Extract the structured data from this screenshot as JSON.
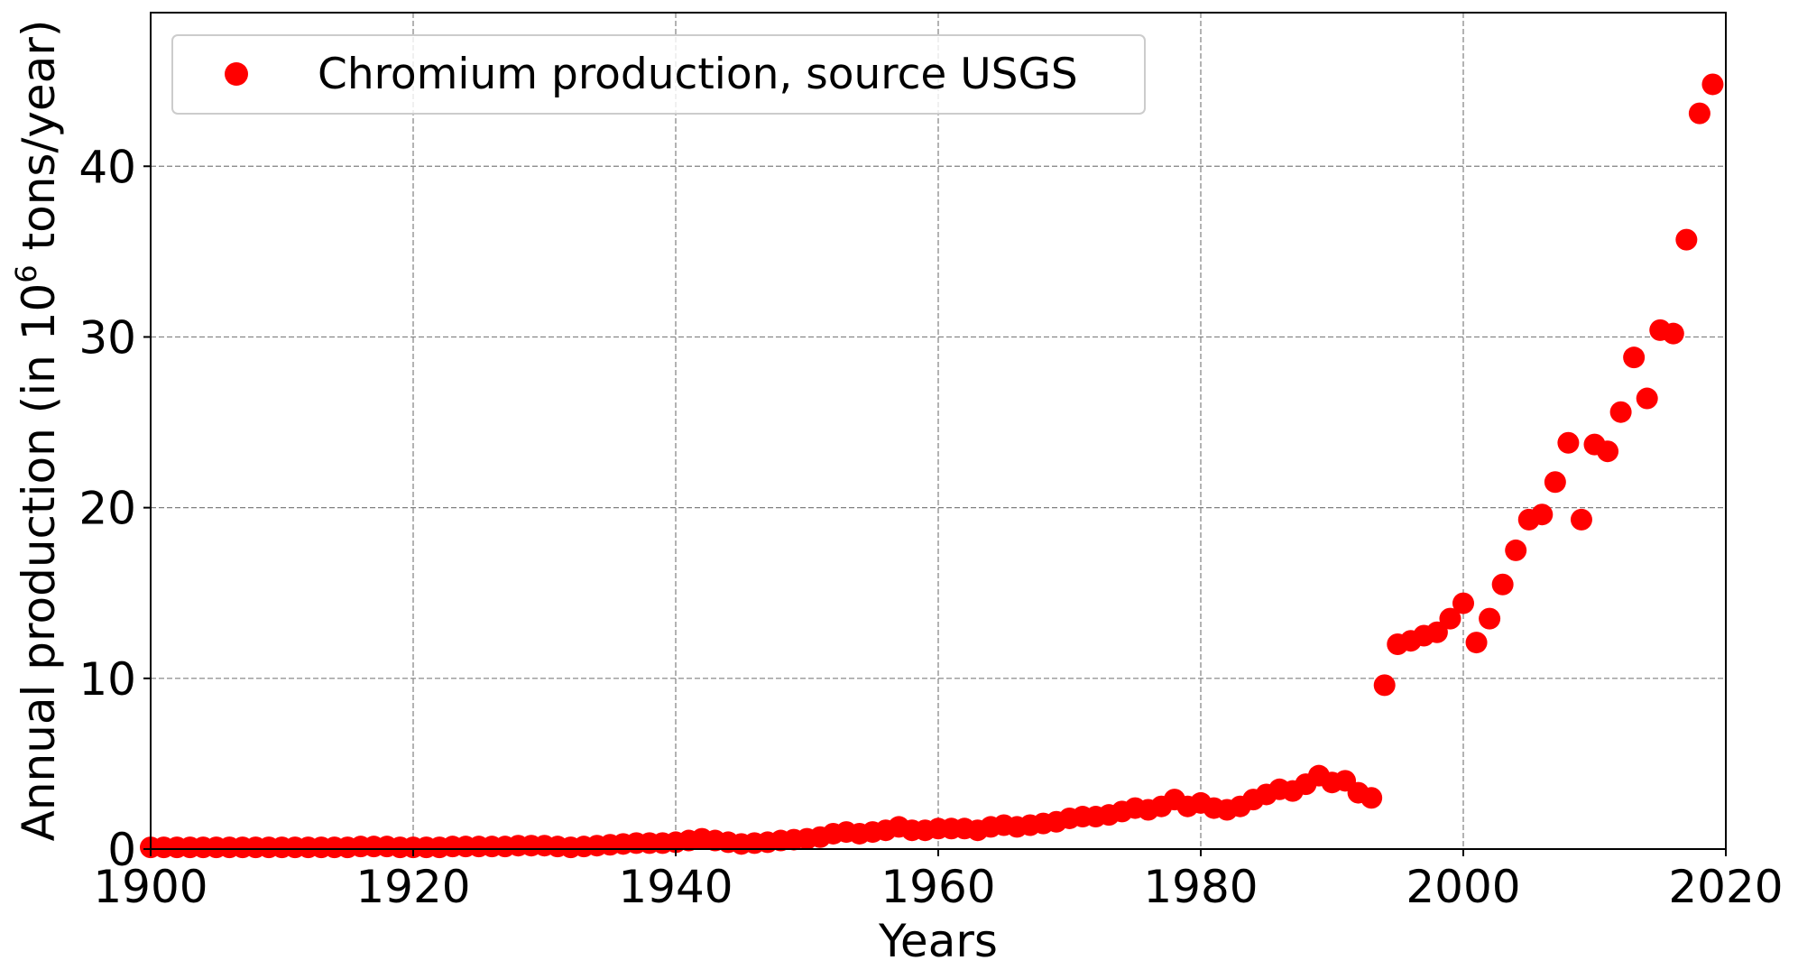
{
  "chart_data": {
    "type": "scatter",
    "xlabel": "Years",
    "ylabel_prefix": "Annual production (in 10",
    "ylabel_sup": "6",
    "ylabel_suffix": " tons/year)",
    "xlim": [
      1900,
      2020
    ],
    "ylim": [
      0,
      49
    ],
    "x_ticks": [
      1900,
      1920,
      1940,
      1960,
      1980,
      2000,
      2020
    ],
    "y_ticks": [
      0,
      10,
      20,
      30,
      40
    ],
    "grid": true,
    "legend_position": "upper-left",
    "series": [
      {
        "name": "Chromium production, source USGS",
        "color": "#ff0000",
        "marker": "circle",
        "x": [
          1900,
          1901,
          1902,
          1903,
          1904,
          1905,
          1906,
          1907,
          1908,
          1909,
          1910,
          1911,
          1912,
          1913,
          1914,
          1915,
          1916,
          1917,
          1918,
          1919,
          1920,
          1921,
          1922,
          1923,
          1924,
          1925,
          1926,
          1927,
          1928,
          1929,
          1930,
          1931,
          1932,
          1933,
          1934,
          1935,
          1936,
          1937,
          1938,
          1939,
          1940,
          1941,
          1942,
          1943,
          1944,
          1945,
          1946,
          1947,
          1948,
          1949,
          1950,
          1951,
          1952,
          1953,
          1954,
          1955,
          1956,
          1957,
          1958,
          1959,
          1960,
          1961,
          1962,
          1963,
          1964,
          1965,
          1966,
          1967,
          1968,
          1969,
          1970,
          1971,
          1972,
          1973,
          1974,
          1975,
          1976,
          1977,
          1978,
          1979,
          1980,
          1981,
          1982,
          1983,
          1984,
          1985,
          1986,
          1987,
          1988,
          1989,
          1990,
          1991,
          1992,
          1993,
          1994,
          1995,
          1996,
          1997,
          1998,
          1999,
          2000,
          2001,
          2002,
          2003,
          2004,
          2005,
          2006,
          2007,
          2008,
          2009,
          2010,
          2011,
          2012,
          2013,
          2014,
          2015,
          2016,
          2017,
          2018,
          2019
        ],
        "y": [
          0.1,
          0.1,
          0.1,
          0.1,
          0.1,
          0.1,
          0.1,
          0.1,
          0.1,
          0.1,
          0.1,
          0.1,
          0.1,
          0.1,
          0.1,
          0.1,
          0.15,
          0.15,
          0.15,
          0.1,
          0.1,
          0.1,
          0.1,
          0.15,
          0.15,
          0.15,
          0.15,
          0.15,
          0.2,
          0.2,
          0.2,
          0.15,
          0.1,
          0.15,
          0.2,
          0.25,
          0.3,
          0.35,
          0.35,
          0.35,
          0.4,
          0.5,
          0.6,
          0.5,
          0.4,
          0.3,
          0.35,
          0.4,
          0.5,
          0.55,
          0.6,
          0.7,
          0.9,
          1.0,
          0.9,
          1.0,
          1.1,
          1.3,
          1.1,
          1.1,
          1.2,
          1.2,
          1.2,
          1.1,
          1.3,
          1.4,
          1.3,
          1.4,
          1.5,
          1.6,
          1.8,
          1.9,
          1.9,
          2.0,
          2.2,
          2.4,
          2.3,
          2.5,
          2.9,
          2.5,
          2.7,
          2.4,
          2.3,
          2.5,
          2.9,
          3.2,
          3.5,
          3.4,
          3.8,
          4.3,
          3.9,
          4.0,
          3.3,
          3.0,
          9.6,
          12.0,
          12.2,
          12.5,
          12.7,
          13.5,
          14.4,
          12.1,
          13.5,
          15.5,
          17.5,
          19.3,
          19.6,
          21.5,
          23.8,
          19.3,
          23.7,
          23.3,
          25.6,
          28.8,
          26.4,
          30.4,
          30.2,
          35.7,
          43.1,
          44.8
        ]
      }
    ]
  }
}
